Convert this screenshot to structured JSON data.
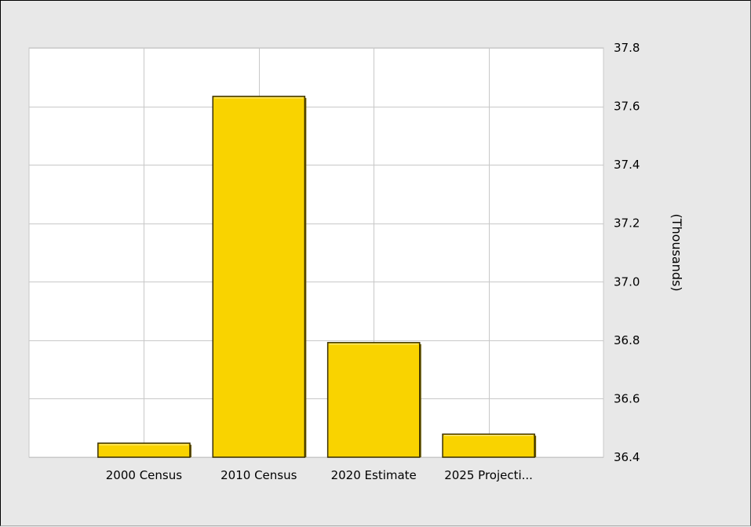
{
  "chart_data": {
    "type": "bar",
    "categories": [
      "2000 Census",
      "2010 Census",
      "2020 Estimate",
      "2025 Projecti..."
    ],
    "values": [
      36.448,
      37.634,
      36.792,
      36.479
    ],
    "ylabel": "(Thousands)",
    "ylim": [
      36.4,
      37.8
    ],
    "yticks": [
      "36.4",
      "36.6",
      "36.8",
      "37.0",
      "37.2",
      "37.4",
      "37.6",
      "37.8"
    ],
    "grid": true,
    "y_axis_side": "right",
    "bar_color": "#f9d300",
    "bar_outline": "#3a3000"
  }
}
